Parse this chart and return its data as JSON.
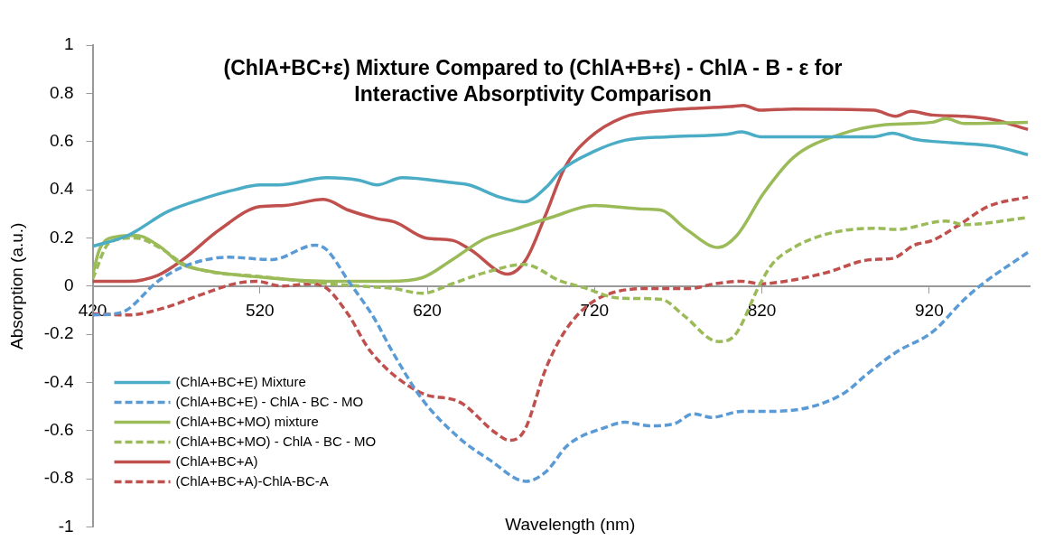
{
  "chart_data": {
    "type": "line",
    "title": "(ChlA+BC+ε) Mixture Compared to (ChlA+B+ε) - ChlA - B - ε for Interactive Absorptivity Comparison",
    "xlabel": "Wavelength (nm)",
    "ylabel": "Absorption (a.u.)",
    "xlim": [
      420,
      980
    ],
    "xticks": [
      420,
      520,
      620,
      720,
      820,
      920
    ],
    "ylim": [
      -1,
      1
    ],
    "yticks": [
      -1,
      -0.8,
      -0.6,
      -0.4,
      -0.2,
      0,
      0.2,
      0.4,
      0.6,
      0.8,
      1
    ],
    "grid": false,
    "legend": "bottom left",
    "marker": "none",
    "series": [
      {
        "name": "(ChlA+BC+E) Mixture",
        "color": "#4bacc6",
        "line_style": "solid",
        "x": [
          420,
          441,
          465,
          487,
          505,
          520,
          531,
          560,
          579,
          590,
          605,
          634,
          645,
          663,
          678,
          691,
          700,
          720,
          738,
          764,
          799,
          808,
          819,
          839,
          887,
          898,
          911,
          933,
          959,
          979
        ],
        "values": [
          0.165,
          0.21,
          0.31,
          0.365,
          0.4,
          0.42,
          0.42,
          0.45,
          0.44,
          0.42,
          0.45,
          0.43,
          0.42,
          0.37,
          0.35,
          0.41,
          0.48,
          0.56,
          0.605,
          0.62,
          0.63,
          0.64,
          0.62,
          0.62,
          0.62,
          0.635,
          0.61,
          0.595,
          0.58,
          0.545
        ]
      },
      {
        "name": "(ChlA+BC+E) - ChlA - BC - MO",
        "color": "#5b9bd5",
        "line_style": "dashed",
        "x": [
          420,
          437,
          459,
          474,
          501,
          527,
          553,
          560,
          573,
          588,
          599,
          617,
          639,
          657,
          679,
          691,
          704,
          727,
          738,
          753,
          768,
          779,
          790,
          808,
          825,
          850,
          870,
          882,
          900,
          922,
          941,
          952,
          979
        ],
        "values": [
          -0.12,
          -0.11,
          0.02,
          0.08,
          0.12,
          0.11,
          0.17,
          0.15,
          0.02,
          -0.13,
          -0.27,
          -0.47,
          -0.63,
          -0.72,
          -0.81,
          -0.77,
          -0.66,
          -0.585,
          -0.565,
          -0.58,
          -0.57,
          -0.53,
          -0.545,
          -0.52,
          -0.52,
          -0.5,
          -0.44,
          -0.37,
          -0.275,
          -0.19,
          -0.055,
          0.01,
          0.14
        ]
      },
      {
        "name": "(ChlA+BC+MO) mixture",
        "color": "#9bbb59",
        "line_style": "solid",
        "x": [
          420,
          424,
          434,
          446,
          461,
          472,
          487,
          516,
          560,
          597,
          617,
          635,
          654,
          672,
          694,
          720,
          749,
          760,
          775,
          794,
          805,
          821,
          839,
          867,
          894,
          922,
          930,
          941,
          979
        ],
        "values": [
          0.045,
          0.15,
          0.205,
          0.21,
          0.16,
          0.095,
          0.065,
          0.04,
          0.02,
          0.02,
          0.035,
          0.11,
          0.195,
          0.235,
          0.285,
          0.335,
          0.32,
          0.315,
          0.235,
          0.16,
          0.21,
          0.385,
          0.535,
          0.63,
          0.67,
          0.68,
          0.695,
          0.675,
          0.68
        ]
      },
      {
        "name": "(ChlA+BC+MO) - ChlA - BC - MO",
        "color": "#9bbb59",
        "line_style": "dashed",
        "x": [
          420,
          430,
          445,
          460,
          475,
          490,
          520,
          560,
          580,
          600,
          617,
          635,
          654,
          678,
          700,
          713,
          735,
          760,
          773,
          794,
          803,
          819,
          826,
          839,
          861,
          889,
          900,
          930,
          941,
          979
        ],
        "values": [
          0.03,
          0.18,
          0.2,
          0.16,
          0.09,
          0.06,
          0.04,
          0.01,
          0.0,
          -0.01,
          -0.03,
          0.01,
          0.055,
          0.09,
          0.02,
          -0.005,
          -0.05,
          -0.055,
          -0.12,
          -0.23,
          -0.21,
          0.01,
          0.09,
          0.16,
          0.22,
          0.24,
          0.235,
          0.27,
          0.255,
          0.285
        ]
      },
      {
        "name": "(ChlA+BC+A)",
        "color": "#c0504d",
        "line_style": "solid",
        "x": [
          420,
          441,
          459,
          474,
          496,
          520,
          535,
          558,
          573,
          590,
          601,
          619,
          635,
          646,
          668,
          679,
          691,
          702,
          716,
          737,
          764,
          801,
          809,
          819,
          839,
          887,
          900,
          909,
          922,
          941,
          959,
          979
        ],
        "values": [
          0.02,
          0.02,
          0.045,
          0.11,
          0.235,
          0.33,
          0.335,
          0.36,
          0.315,
          0.28,
          0.265,
          0.2,
          0.19,
          0.15,
          0.05,
          0.11,
          0.3,
          0.49,
          0.61,
          0.7,
          0.73,
          0.745,
          0.75,
          0.73,
          0.735,
          0.73,
          0.705,
          0.725,
          0.71,
          0.705,
          0.69,
          0.65
        ]
      },
      {
        "name": "(ChlA+BC+A)-ChlA-BC-A",
        "color": "#c0504d",
        "line_style": "dashed",
        "x": [
          420,
          441,
          463,
          487,
          505,
          518,
          533,
          551,
          560,
          573,
          586,
          617,
          639,
          661,
          669,
          678,
          691,
          702,
          716,
          735,
          755,
          777,
          792,
          808,
          819,
          834,
          858,
          885,
          898,
          911,
          922,
          937,
          955,
          979
        ],
        "values": [
          -0.115,
          -0.12,
          -0.09,
          -0.03,
          0.01,
          0.02,
          0,
          0.01,
          -0.01,
          -0.12,
          -0.27,
          -0.445,
          -0.48,
          -0.61,
          -0.64,
          -0.6,
          -0.34,
          -0.19,
          -0.08,
          -0.02,
          -0.01,
          -0.01,
          0.01,
          0.02,
          0.01,
          0.02,
          0.055,
          0.11,
          0.115,
          0.17,
          0.19,
          0.25,
          0.33,
          0.37
        ]
      }
    ]
  }
}
